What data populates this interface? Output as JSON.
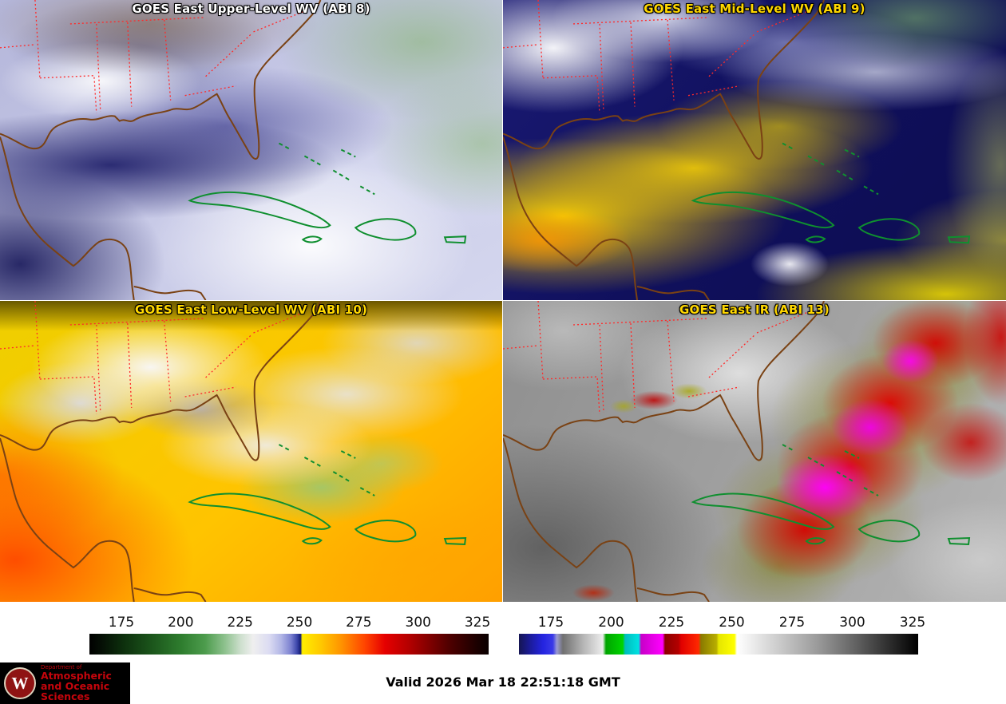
{
  "panels": [
    {
      "id": "upper-wv",
      "title": "GOES East Upper-Level WV (ABI 8)",
      "title_color": "#ffffff"
    },
    {
      "id": "mid-wv",
      "title": "GOES East Mid-Level WV (ABI 9)",
      "title_color": "#ffd700"
    },
    {
      "id": "low-wv",
      "title": "GOES East Low-Level WV (ABI 10)",
      "title_color": "#ffd700"
    },
    {
      "id": "ir",
      "title": "GOES East IR (ABI 13)",
      "title_color": "#ffd700"
    }
  ],
  "colorbars": {
    "wv": {
      "ticks": [
        175,
        200,
        225,
        250,
        275,
        300,
        325
      ],
      "tick_start_pct": 8,
      "tick_step_pct": 14.87,
      "stops": [
        [
          0,
          "#000000"
        ],
        [
          3,
          "#050f05"
        ],
        [
          8,
          "#0c2d0c"
        ],
        [
          15,
          "#1a521a"
        ],
        [
          23,
          "#2e7d2e"
        ],
        [
          29,
          "#4d9c4d"
        ],
        [
          34,
          "#8fc28f"
        ],
        [
          38,
          "#cfe0cf"
        ],
        [
          41,
          "#efefef"
        ],
        [
          45,
          "#dcdcf2"
        ],
        [
          48,
          "#b2b6e6"
        ],
        [
          50.5,
          "#7a80d0"
        ],
        [
          52,
          "#3c46aa"
        ],
        [
          52.9,
          "#141c74"
        ],
        [
          53.3,
          "#ffee00"
        ],
        [
          58,
          "#ffc800"
        ],
        [
          63,
          "#ff9400"
        ],
        [
          69,
          "#ff4400"
        ],
        [
          74,
          "#e60000"
        ],
        [
          80,
          "#b40000"
        ],
        [
          84,
          "#8c0000"
        ],
        [
          90,
          "#500000"
        ],
        [
          97,
          "#1c0000"
        ],
        [
          100,
          "#0a0000"
        ]
      ]
    },
    "ir": {
      "ticks": [
        175,
        200,
        225,
        250,
        275,
        300,
        325
      ],
      "tick_start_pct": 8,
      "tick_step_pct": 15.1,
      "stops": [
        [
          0,
          "#151552"
        ],
        [
          3,
          "#1c1c9e"
        ],
        [
          6,
          "#2424e0"
        ],
        [
          8.5,
          "#3a3ae8"
        ],
        [
          9.5,
          "#9a9ad2"
        ],
        [
          11,
          "#707070"
        ],
        [
          16,
          "#b4b4b4"
        ],
        [
          21,
          "#ececec"
        ],
        [
          21.8,
          "#00a400"
        ],
        [
          26,
          "#00d400"
        ],
        [
          26.6,
          "#00bcbc"
        ],
        [
          30,
          "#00e2e2"
        ],
        [
          30.6,
          "#c800c8"
        ],
        [
          36,
          "#ff00ff"
        ],
        [
          36.6,
          "#8c0000"
        ],
        [
          40,
          "#b40000"
        ],
        [
          40.6,
          "#e00000"
        ],
        [
          45,
          "#ff2800"
        ],
        [
          45.6,
          "#8a7a00"
        ],
        [
          49.5,
          "#b8ae00"
        ],
        [
          50,
          "#e6e600"
        ],
        [
          54,
          "#ffff00"
        ],
        [
          54.6,
          "#ffffff"
        ],
        [
          65,
          "#cccccc"
        ],
        [
          75,
          "#999999"
        ],
        [
          85,
          "#5e5e5e"
        ],
        [
          100,
          "#000000"
        ]
      ]
    }
  },
  "footer": {
    "valid_time": "Valid 2026 Mar 18 22:51:18 GMT"
  },
  "logo": {
    "dept_line": "Department of",
    "line1": "Atmospheric",
    "line2": "and Oceanic Sciences",
    "crest_letter": "W",
    "text_color": "#c5050c",
    "bg": "#000000"
  }
}
